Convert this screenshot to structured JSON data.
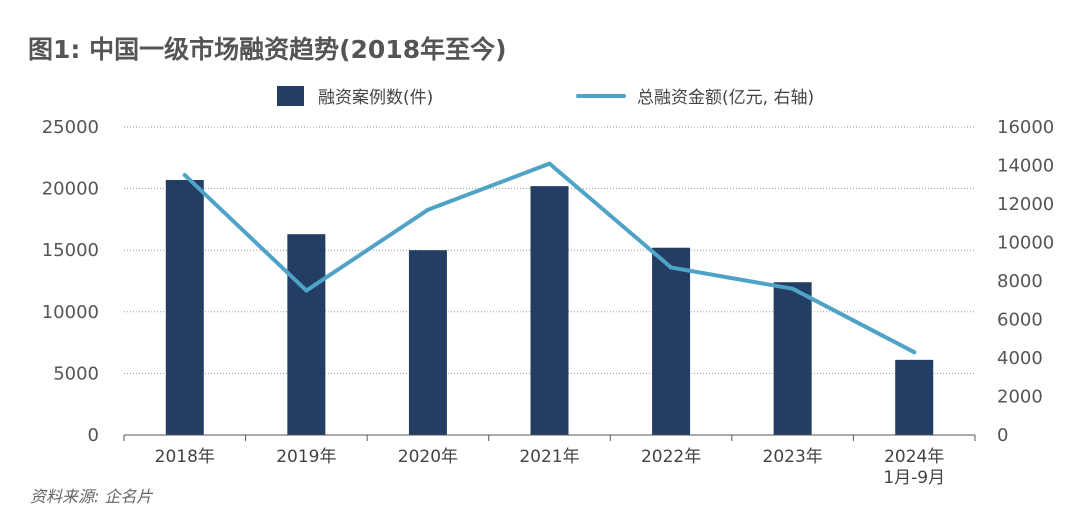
{
  "title": "图1: 中国一级市场融资趋势(2018年至今)",
  "source": "资料来源: 企名片",
  "chart_data": {
    "type": "bar+line",
    "categories": [
      [
        "2018年"
      ],
      [
        "2019年"
      ],
      [
        "2020年"
      ],
      [
        "2021年"
      ],
      [
        "2022年"
      ],
      [
        "2023年"
      ],
      [
        "2024年",
        "1月-9月"
      ]
    ],
    "series": [
      {
        "name": "融资案例数(件)",
        "type": "bar",
        "axis": "left",
        "color": "#243d63",
        "values": [
          20700,
          16300,
          15000,
          20200,
          15200,
          12400,
          6100
        ]
      },
      {
        "name": "总融资金额(亿元, 右轴)",
        "type": "line",
        "axis": "right",
        "color": "#4fa3c7",
        "values": [
          13500,
          7500,
          11700,
          14100,
          8700,
          7600,
          4300
        ]
      }
    ],
    "left_axis": {
      "min": 0,
      "max": 25000,
      "ticks": [
        0,
        5000,
        10000,
        15000,
        20000,
        25000
      ]
    },
    "right_axis": {
      "min": 0,
      "max": 16000,
      "ticks": [
        0,
        2000,
        4000,
        6000,
        8000,
        10000,
        12000,
        14000,
        16000
      ]
    },
    "grid": true,
    "legend_position": "top-center"
  }
}
